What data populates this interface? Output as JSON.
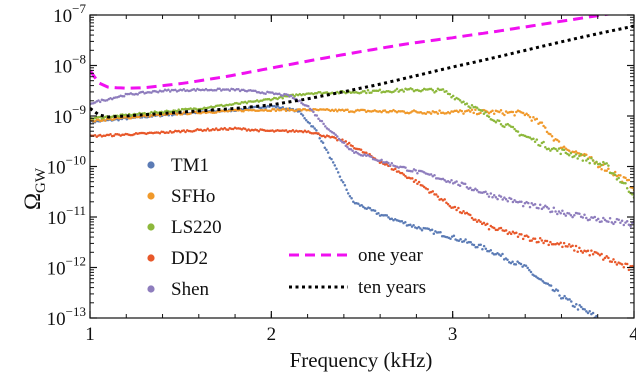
{
  "chart_data": {
    "type": "scatter",
    "xlabel": "Frequency (kHz)",
    "ylabel": "Ω_GW",
    "ylabel_main": "Ω",
    "ylabel_sub": "GW",
    "xlim": [
      1,
      4
    ],
    "ylim_log10": [
      -13,
      -7
    ],
    "y_scale": "log",
    "grid": false,
    "x_ticks": [
      {
        "value": 1,
        "label": "1"
      },
      {
        "value": 2,
        "label": "2"
      },
      {
        "value": 3,
        "label": "3"
      },
      {
        "value": 4,
        "label": "4"
      }
    ],
    "y_ticks": [
      {
        "exp": -7,
        "label": "-7"
      },
      {
        "exp": -8,
        "label": "-8"
      },
      {
        "exp": -9,
        "label": "-9"
      },
      {
        "exp": -10,
        "label": "-10"
      },
      {
        "exp": -11,
        "label": "-11"
      },
      {
        "exp": -12,
        "label": "-12"
      },
      {
        "exp": -13,
        "label": "-13"
      }
    ],
    "y_tick_base": "10",
    "series": [
      {
        "name": "TM1",
        "color": "#5b7bb5",
        "style": "dots",
        "x": [
          1.0,
          1.2,
          1.5,
          1.8,
          2.0,
          2.15,
          2.25,
          2.35,
          2.45,
          2.6,
          2.8,
          3.0,
          3.2,
          3.4,
          3.5,
          3.65,
          3.8,
          3.95
        ],
        "log10y": [
          -9.12,
          -9.05,
          -8.95,
          -8.88,
          -8.8,
          -8.9,
          -9.3,
          -10.0,
          -10.7,
          -10.95,
          -11.2,
          -11.4,
          -11.65,
          -12.0,
          -12.3,
          -12.7,
          -13.0,
          -13.3
        ]
      },
      {
        "name": "SFHo",
        "color": "#f0992b",
        "style": "dots",
        "x": [
          1.0,
          1.3,
          1.6,
          1.9,
          2.2,
          2.5,
          2.8,
          3.0,
          3.2,
          3.4,
          3.5,
          3.6,
          3.7,
          3.8,
          3.9,
          4.0
        ],
        "log10y": [
          -9.1,
          -9.0,
          -8.93,
          -8.88,
          -8.88,
          -8.9,
          -8.92,
          -8.92,
          -8.92,
          -8.95,
          -9.2,
          -9.6,
          -9.75,
          -9.95,
          -10.15,
          -10.4
        ]
      },
      {
        "name": "LS220",
        "color": "#8db83c",
        "style": "dots",
        "x": [
          1.0,
          1.3,
          1.6,
          1.9,
          2.2,
          2.5,
          2.8,
          2.95,
          3.05,
          3.2,
          3.4,
          3.55,
          3.7,
          3.85,
          4.0
        ],
        "log10y": [
          -9.05,
          -8.95,
          -8.85,
          -8.72,
          -8.55,
          -8.52,
          -8.48,
          -8.5,
          -8.7,
          -9.0,
          -9.4,
          -9.65,
          -9.8,
          -10.0,
          -10.55
        ]
      },
      {
        "name": "DD2",
        "color": "#e8582a",
        "style": "dots",
        "x": [
          1.0,
          1.3,
          1.6,
          1.8,
          2.0,
          2.2,
          2.4,
          2.6,
          2.8,
          3.0,
          3.2,
          3.4,
          3.6,
          3.8,
          4.0
        ],
        "log10y": [
          -9.4,
          -9.35,
          -9.28,
          -9.25,
          -9.3,
          -9.3,
          -9.5,
          -9.9,
          -10.3,
          -10.8,
          -11.2,
          -11.4,
          -11.55,
          -11.75,
          -12.05
        ]
      },
      {
        "name": "Shen",
        "color": "#8e7dbd",
        "style": "dots",
        "x": [
          1.0,
          1.2,
          1.4,
          1.6,
          1.8,
          2.0,
          2.1,
          2.2,
          2.3,
          2.45,
          2.7,
          3.0,
          3.2,
          3.4,
          3.6,
          3.8,
          4.0
        ],
        "log10y": [
          -8.75,
          -8.58,
          -8.5,
          -8.48,
          -8.48,
          -8.55,
          -8.6,
          -8.8,
          -9.2,
          -9.7,
          -10.0,
          -10.3,
          -10.55,
          -10.75,
          -10.9,
          -11.05,
          -11.15
        ]
      },
      {
        "name": "one year",
        "color": "#f010f0",
        "style": "dashed",
        "x": [
          1.0,
          1.05,
          1.1,
          1.2,
          1.3,
          1.5,
          1.75,
          2.0,
          2.25,
          2.5,
          2.75,
          3.0,
          3.25,
          3.5,
          3.75,
          3.9
        ],
        "log10y": [
          -8.1,
          -8.35,
          -8.43,
          -8.45,
          -8.44,
          -8.36,
          -8.22,
          -8.05,
          -7.88,
          -7.72,
          -7.57,
          -7.45,
          -7.32,
          -7.18,
          -7.04,
          -6.96
        ]
      },
      {
        "name": "ten years",
        "color": "#000000",
        "style": "dotted",
        "x": [
          1.0,
          1.05,
          1.1,
          1.2,
          1.4,
          1.6,
          1.8,
          2.0,
          2.2,
          2.4,
          2.6,
          2.8,
          3.0,
          3.2,
          3.4,
          3.6,
          3.8,
          4.0
        ],
        "log10y": [
          -8.85,
          -8.98,
          -9.02,
          -9.0,
          -8.95,
          -8.9,
          -8.85,
          -8.78,
          -8.66,
          -8.52,
          -8.37,
          -8.2,
          -8.03,
          -7.87,
          -7.7,
          -7.53,
          -7.37,
          -7.22
        ]
      }
    ]
  }
}
